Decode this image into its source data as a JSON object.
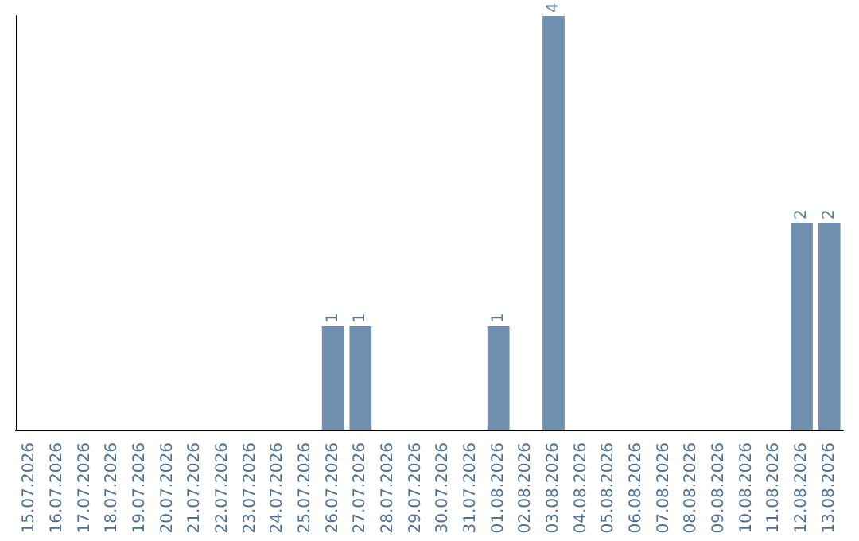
{
  "chart_data": {
    "type": "bar",
    "categories": [
      "15.07.2026",
      "16.07.2026",
      "17.07.2026",
      "18.07.2026",
      "19.07.2026",
      "20.07.2026",
      "21.07.2026",
      "22.07.2026",
      "23.07.2026",
      "24.07.2026",
      "25.07.2026",
      "26.07.2026",
      "27.07.2026",
      "28.07.2026",
      "29.07.2026",
      "30.07.2026",
      "31.07.2026",
      "01.08.2026",
      "02.08.2026",
      "03.08.2026",
      "04.08.2026",
      "05.08.2026",
      "06.08.2026",
      "07.08.2026",
      "08.08.2026",
      "09.08.2026",
      "10.08.2026",
      "11.08.2026",
      "12.08.2026",
      "13.08.2026"
    ],
    "values": [
      0,
      0,
      0,
      0,
      0,
      0,
      0,
      0,
      0,
      0,
      0,
      1,
      1,
      0,
      0,
      0,
      0,
      1,
      0,
      4,
      0,
      0,
      0,
      0,
      0,
      0,
      0,
      0,
      2,
      2
    ],
    "value_labels": [
      null,
      null,
      null,
      null,
      null,
      null,
      null,
      null,
      null,
      null,
      null,
      "1",
      "1",
      null,
      null,
      null,
      null,
      "1",
      null,
      "4",
      null,
      null,
      null,
      null,
      null,
      null,
      null,
      null,
      "2",
      "2"
    ],
    "color": "#6e8fad",
    "ylim": [
      0,
      4
    ],
    "tick_labels": "x"
  }
}
